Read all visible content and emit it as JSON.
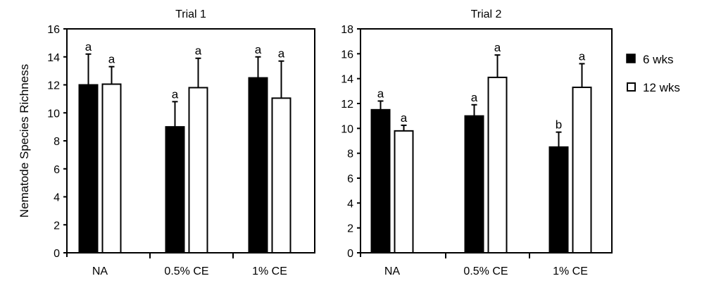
{
  "chart_data": [
    {
      "type": "bar",
      "title": "Trial 1",
      "categories": [
        "NA",
        "0.5% CE",
        "1% CE"
      ],
      "ylabel": "Nematode Species Richness",
      "ylim": [
        0,
        16
      ],
      "yticks": [
        0,
        2,
        4,
        6,
        8,
        10,
        12,
        14,
        16
      ],
      "series": [
        {
          "name": "6 wks",
          "values": [
            12.0,
            9.0,
            12.5
          ],
          "error_upper": [
            14.2,
            10.8,
            14.0
          ],
          "letters": [
            "a",
            "a",
            "a"
          ],
          "color": "#000000"
        },
        {
          "name": "12 wks",
          "values": [
            12.05,
            11.8,
            11.05
          ],
          "error_upper": [
            13.3,
            13.9,
            13.7
          ],
          "letters": [
            "a",
            "a",
            "a"
          ],
          "color": "#ffffff"
        }
      ]
    },
    {
      "type": "bar",
      "title": "Trial 2",
      "categories": [
        "NA",
        "0.5% CE",
        "1% CE"
      ],
      "ylim": [
        0,
        18
      ],
      "yticks": [
        0,
        2,
        4,
        6,
        8,
        10,
        12,
        14,
        16,
        18
      ],
      "series": [
        {
          "name": "6 wks",
          "values": [
            11.5,
            11.0,
            8.5
          ],
          "error_upper": [
            12.2,
            11.9,
            9.7
          ],
          "letters": [
            "a",
            "a",
            "b"
          ],
          "color": "#000000"
        },
        {
          "name": "12 wks",
          "values": [
            9.8,
            14.1,
            13.3
          ],
          "error_upper": [
            10.25,
            15.9,
            15.2
          ],
          "letters": [
            "a",
            "a",
            "a"
          ],
          "color": "#ffffff"
        }
      ]
    }
  ],
  "legend": {
    "placement": "right",
    "items": [
      "6 wks",
      "12 wks"
    ]
  }
}
